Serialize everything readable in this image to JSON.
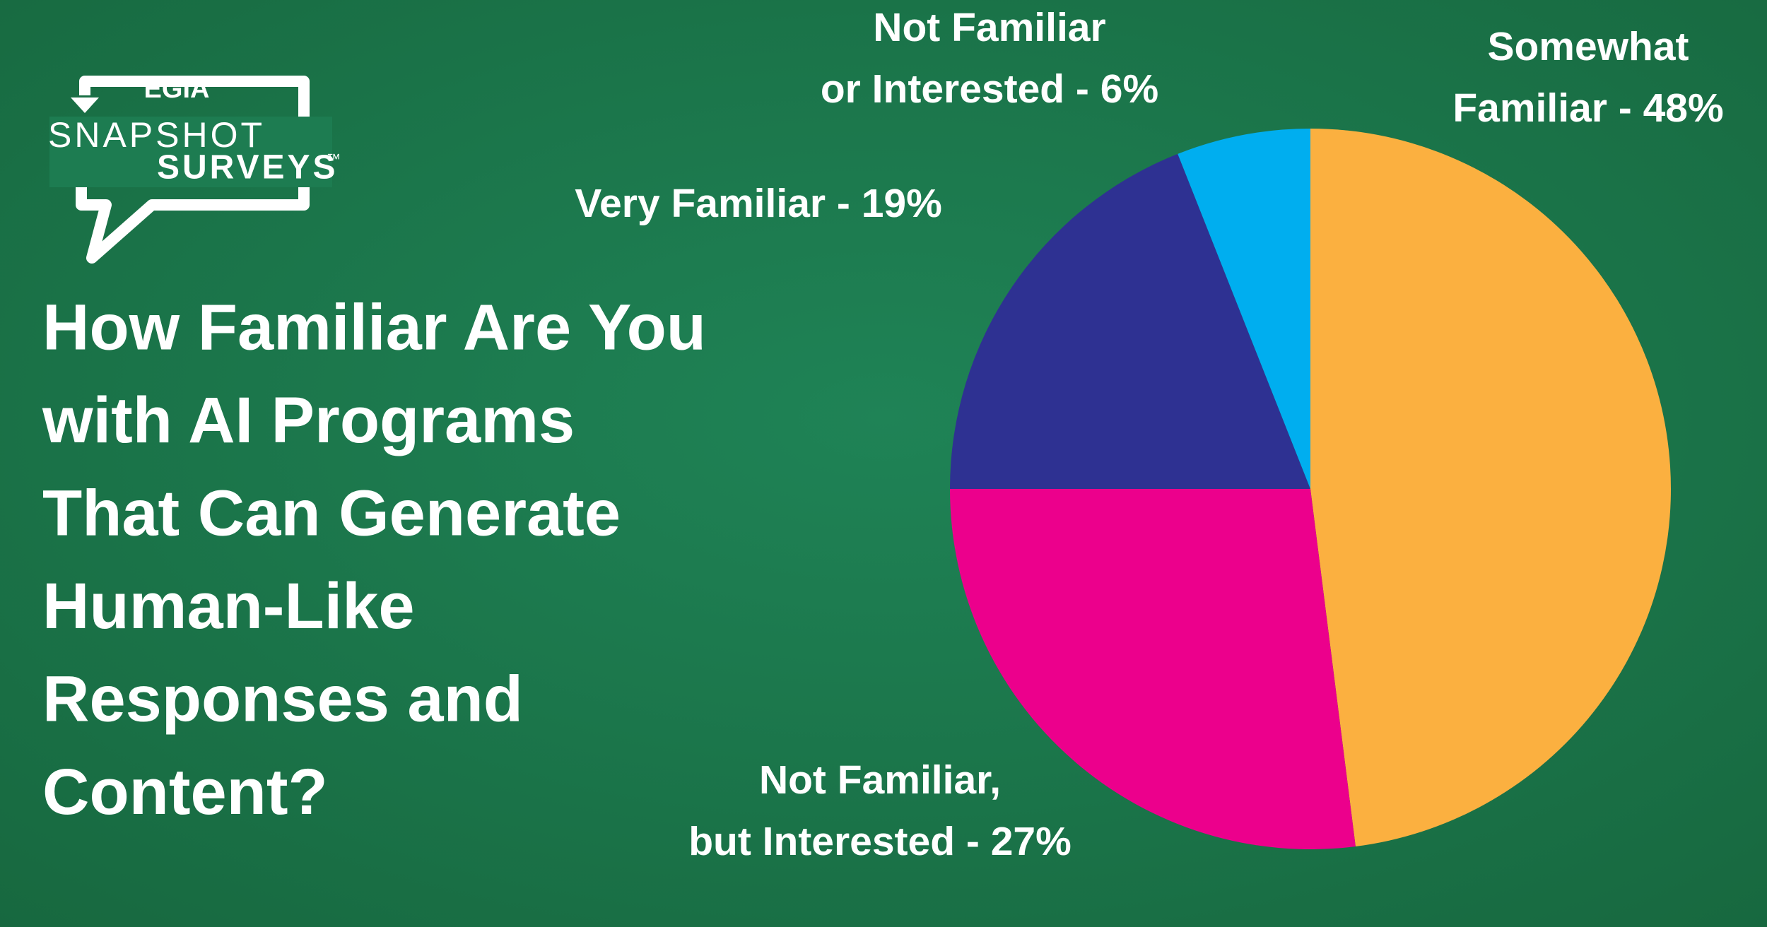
{
  "chart_data": {
    "type": "pie",
    "title": [
      "How Familiar Are You",
      "with  AI Programs",
      "That Can Generate",
      "Human-Like",
      "Responses and",
      "Content?"
    ],
    "labels": [
      [
        "Somewhat",
        "Familiar - 48%"
      ],
      [
        "Not Familiar,",
        "but Interested - 27%"
      ],
      [
        "Very Familiar - 19%"
      ],
      [
        "Not Familiar",
        "or Interested - 6%"
      ]
    ],
    "values": [
      48,
      27,
      19,
      6
    ],
    "colors": [
      "#FBB040",
      "#EC008C",
      "#2E3192",
      "#00AEEF"
    ]
  },
  "logo": {
    "brand": "EGIA",
    "line1": "SNAPSHOT",
    "line2": "SURVEYS",
    "mark": "™"
  }
}
